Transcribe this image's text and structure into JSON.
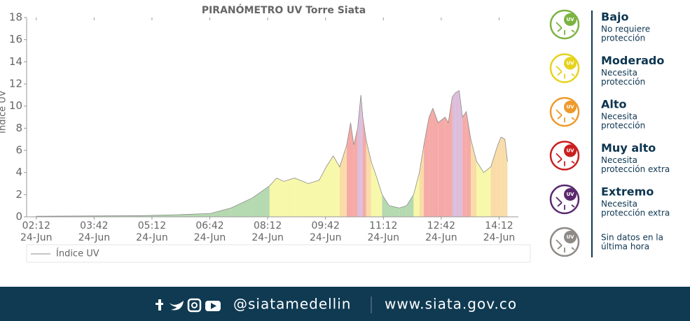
{
  "chart_data": {
    "type": "area",
    "title": "PIRANÓMETRO UV Torre Siata",
    "y_label": "Índice UV",
    "x": [
      132,
      141,
      293,
      359,
      403,
      435,
      468,
      495,
      506,
      517,
      534,
      555,
      572,
      583,
      594,
      604,
      615,
      621,
      626,
      632,
      637,
      640,
      645,
      653,
      662,
      670,
      681,
      697,
      708,
      719,
      728,
      735,
      743,
      749,
      757,
      768,
      773,
      779,
      784,
      790,
      795,
      801,
      808,
      817,
      828,
      839,
      850,
      855,
      861,
      865
    ],
    "series": [
      {
        "name": "Índice UV",
        "color": "#8c8c8c",
        "values": [
          0.05,
          0.05,
          0.1,
          0.2,
          0.3,
          0.8,
          1.7,
          2.8,
          3.5,
          3.2,
          3.5,
          3.0,
          3.3,
          4.5,
          5.5,
          4.5,
          6.5,
          8.5,
          6.5,
          8,
          11.0,
          9,
          7,
          5,
          3.5,
          2,
          1,
          0.8,
          1,
          2,
          4,
          6.5,
          9,
          9.8,
          8.5,
          9,
          8.5,
          10.8,
          11.2,
          11.4,
          9,
          9.5,
          7,
          5,
          4,
          4.5,
          6.5,
          7.2,
          7,
          5
        ]
      }
    ],
    "xlim": [
      117,
      882
    ],
    "xticks": [
      {
        "value": 132,
        "label": "02:12",
        "date": "24-Jun"
      },
      {
        "value": 222,
        "label": "03:42",
        "date": "24-Jun"
      },
      {
        "value": 312,
        "label": "05:12",
        "date": "24-Jun"
      },
      {
        "value": 402,
        "label": "06:42",
        "date": "24-Jun"
      },
      {
        "value": 492,
        "label": "08:12",
        "date": "24-Jun"
      },
      {
        "value": 582,
        "label": "09:42",
        "date": "24-Jun"
      },
      {
        "value": 672,
        "label": "11:12",
        "date": "24-Jun"
      },
      {
        "value": 762,
        "label": "12:42",
        "date": "24-Jun"
      },
      {
        "value": 852,
        "label": "14:12",
        "date": "24-Jun"
      }
    ],
    "ylim": [
      0,
      18
    ],
    "yticks": [
      0,
      2,
      4,
      6,
      8,
      10,
      12,
      14,
      16,
      18
    ],
    "legend": "bottom"
  },
  "legend_panel": {
    "icon_label": "UV",
    "levels": [
      {
        "name": "Bajo",
        "description": [
          "No requiere",
          "protección"
        ],
        "min": 0,
        "color": "#7cb342",
        "fill": "#b5d9b0"
      },
      {
        "name": "Moderado",
        "description": [
          "Necesita",
          "protección"
        ],
        "min": 3,
        "color": "#e6d31e",
        "fill": "#f8f8aa"
      },
      {
        "name": "Alto",
        "description": [
          "Necesita",
          "protección"
        ],
        "min": 6,
        "color": "#ee9a2b",
        "fill": "#f9dca8"
      },
      {
        "name": "Muy alto",
        "description": [
          "Necesita",
          "protección extra"
        ],
        "min": 8,
        "color": "#c9201f",
        "fill": "#f5aaa8"
      },
      {
        "name": "Extremo",
        "description": [
          "Necesita",
          "protección extra"
        ],
        "min": 11,
        "color": "#5b2a6e",
        "fill": "#dcbedc"
      }
    ],
    "no_data": {
      "description": [
        "Sin datos en la",
        "última hora"
      ],
      "color": "#8e8a86"
    }
  },
  "footer": {
    "handle": "@siatamedellin",
    "url": "www.siata.gov.co"
  }
}
